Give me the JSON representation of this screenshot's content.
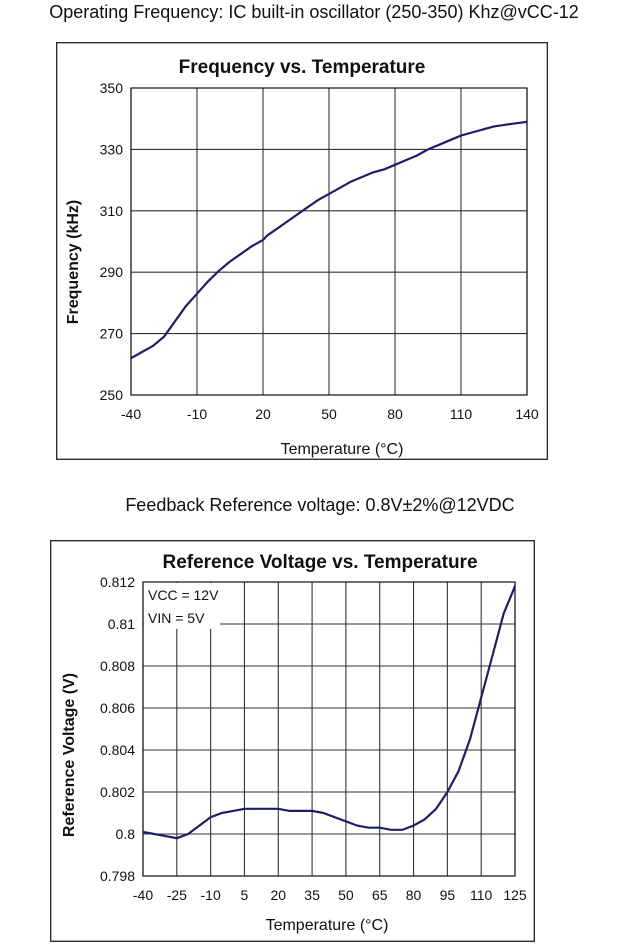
{
  "captions": {
    "top": "Operating Frequency: IC built-in oscillator (250-350) Khz@vCC-12",
    "middle": "Feedback Reference voltage: 0.8V±2%@12VDC"
  },
  "chart_data": [
    {
      "type": "line",
      "title": "Frequency vs. Temperature",
      "xlabel": "Temperature (°C)",
      "ylabel": "Frequency (kHz)",
      "xlim": [
        -40,
        140
      ],
      "ylim": [
        250,
        350
      ],
      "xticks": [
        -40,
        -10,
        20,
        50,
        80,
        110,
        140
      ],
      "yticks": [
        250,
        270,
        290,
        310,
        330,
        350
      ],
      "grid": true,
      "series": [
        {
          "x": [
            -40,
            -35,
            -30,
            -25,
            -20,
            -15,
            -10,
            -5,
            0,
            5,
            10,
            15,
            20,
            22,
            25,
            30,
            35,
            40,
            45,
            50,
            55,
            60,
            65,
            70,
            75,
            80,
            85,
            90,
            95,
            100,
            105,
            110,
            115,
            120,
            125,
            130,
            135,
            140
          ],
          "y": [
            262,
            264,
            266,
            269,
            274,
            279,
            283,
            287,
            290.5,
            293.5,
            296,
            298.5,
            300.5,
            302,
            303.5,
            306,
            308.5,
            311,
            313.5,
            315.5,
            317.5,
            319.5,
            321,
            322.5,
            323.5,
            325,
            326.5,
            328,
            330,
            331.5,
            333,
            334.5,
            335.5,
            336.5,
            337.5,
            338,
            338.5,
            339
          ]
        }
      ]
    },
    {
      "type": "line",
      "title": "Reference Voltage vs. Temperature",
      "xlabel": "Temperature (°C)",
      "ylabel": "Reference Voltage (V)",
      "xlim": [
        -40,
        125
      ],
      "ylim": [
        0.798,
        0.812
      ],
      "xticks": [
        -40,
        -25,
        -10,
        5,
        20,
        35,
        50,
        65,
        80,
        95,
        110,
        125
      ],
      "yticks": [
        0.798,
        0.8,
        0.802,
        0.804,
        0.806,
        0.808,
        0.81,
        0.812
      ],
      "ytick_labels": [
        "0.798",
        "0.8",
        "0.802",
        "0.804",
        "0.806",
        "0.808",
        "0.81",
        "0.812"
      ],
      "grid": true,
      "annotations": [
        "VCC = 12V",
        "VIN = 5V"
      ],
      "series": [
        {
          "x": [
            -40,
            -35,
            -30,
            -25,
            -20,
            -15,
            -10,
            -5,
            0,
            5,
            10,
            15,
            20,
            25,
            30,
            35,
            40,
            45,
            50,
            55,
            60,
            65,
            70,
            75,
            80,
            85,
            90,
            95,
            100,
            105,
            110,
            115,
            120,
            125
          ],
          "y": [
            0.8001,
            0.8,
            0.7999,
            0.7998,
            0.8,
            0.8004,
            0.8008,
            0.801,
            0.8011,
            0.8012,
            0.8012,
            0.8012,
            0.8012,
            0.8011,
            0.8011,
            0.8011,
            0.801,
            0.8008,
            0.8006,
            0.8004,
            0.8003,
            0.8003,
            0.8002,
            0.8002,
            0.8004,
            0.8007,
            0.8012,
            0.802,
            0.803,
            0.8045,
            0.8065,
            0.8085,
            0.8105,
            0.8118
          ]
        }
      ]
    }
  ]
}
